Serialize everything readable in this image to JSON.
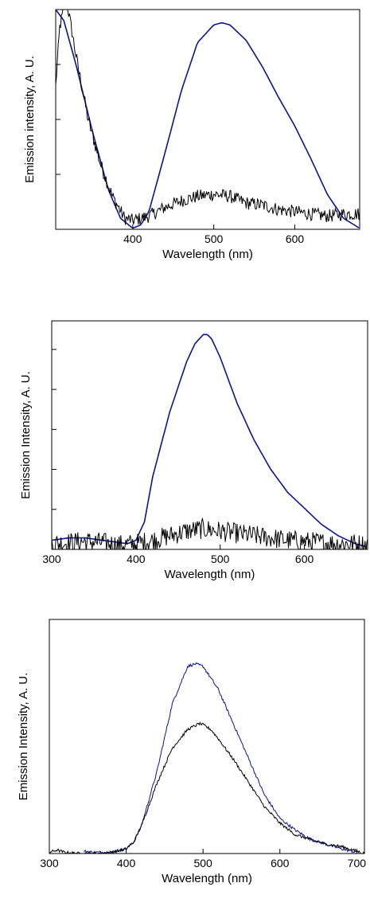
{
  "colors": {
    "blue": "#0a1496",
    "black": "#000000"
  },
  "chart_data": [
    {
      "type": "line",
      "xlabel": "Wavelength (nm)",
      "ylabel": "Emission intensity, A. U.",
      "xlim": [
        305,
        680
      ],
      "ylim": [
        0,
        1.0
      ],
      "xticks": [
        400,
        500,
        600
      ],
      "yticks": [
        0,
        0.25,
        0.5,
        0.75,
        1.0
      ],
      "grid": false,
      "series": [
        {
          "color": "blue",
          "noise": 0,
          "x": [
            305,
            315,
            330,
            350,
            370,
            385,
            400,
            410,
            420,
            440,
            460,
            480,
            500,
            510,
            520,
            540,
            560,
            580,
            600,
            620,
            640,
            660,
            680
          ],
          "y": [
            1.0,
            0.95,
            0.75,
            0.45,
            0.18,
            0.05,
            0.005,
            0.02,
            0.08,
            0.35,
            0.63,
            0.85,
            0.93,
            0.94,
            0.93,
            0.86,
            0.74,
            0.6,
            0.47,
            0.32,
            0.16,
            0.05,
            0.005
          ]
        },
        {
          "color": "black",
          "noise": 0.03,
          "x": [
            305,
            310,
            318,
            325,
            332,
            345,
            360,
            375,
            390,
            400,
            420,
            440,
            460,
            480,
            500,
            520,
            540,
            560,
            580,
            600,
            620,
            640,
            660,
            680
          ],
          "y": [
            0.65,
            0.92,
            1.05,
            0.9,
            0.75,
            0.5,
            0.3,
            0.15,
            0.05,
            0.04,
            0.06,
            0.1,
            0.13,
            0.15,
            0.16,
            0.15,
            0.12,
            0.11,
            0.09,
            0.08,
            0.07,
            0.06,
            0.07,
            0.07
          ]
        }
      ]
    },
    {
      "type": "line",
      "xlabel": "Wavelength (nm)",
      "ylabel": "Emission Intensity, A. U.",
      "xlim": [
        300,
        675
      ],
      "ylim": [
        0,
        1.0
      ],
      "xticks": [
        300,
        400,
        500,
        600
      ],
      "yticks": [
        0,
        0.175,
        0.35,
        0.525,
        0.7,
        0.875
      ],
      "grid": false,
      "series": [
        {
          "color": "blue",
          "noise": 0,
          "x": [
            300,
            320,
            340,
            360,
            380,
            390,
            400,
            410,
            420,
            440,
            460,
            470,
            480,
            485,
            490,
            500,
            520,
            540,
            560,
            580,
            600,
            620,
            640,
            660,
            675
          ],
          "y": [
            0.04,
            0.05,
            0.05,
            0.04,
            0.03,
            0.025,
            0.04,
            0.12,
            0.32,
            0.6,
            0.82,
            0.9,
            0.94,
            0.94,
            0.92,
            0.84,
            0.64,
            0.48,
            0.35,
            0.25,
            0.18,
            0.11,
            0.06,
            0.025,
            0.01
          ]
        },
        {
          "color": "black",
          "noise": 0.045,
          "x": [
            300,
            320,
            340,
            360,
            380,
            400,
            420,
            440,
            460,
            480,
            500,
            520,
            540,
            560,
            580,
            600,
            620,
            640,
            660,
            675
          ],
          "y": [
            0.025,
            0.03,
            0.035,
            0.03,
            0.02,
            0.025,
            0.04,
            0.06,
            0.08,
            0.09,
            0.08,
            0.07,
            0.06,
            0.05,
            0.04,
            0.035,
            0.03,
            0.025,
            0.025,
            0.02
          ]
        }
      ]
    },
    {
      "type": "line",
      "xlabel": "Wavelength (nm)",
      "ylabel": "Emission Intensity, A. U.",
      "xlim": [
        300,
        710
      ],
      "ylim": [
        0,
        1.0
      ],
      "xticks": [
        300,
        400,
        500,
        600,
        700
      ],
      "yticks": [
        0
      ],
      "grid": false,
      "series": [
        {
          "color": "blue",
          "noise": 0.006,
          "x": [
            345,
            360,
            380,
            400,
            410,
            420,
            440,
            460,
            480,
            490,
            500,
            510,
            520,
            540,
            560,
            580,
            600,
            620,
            640,
            660,
            680,
            700
          ],
          "y": [
            0.01,
            0.005,
            0.005,
            0.02,
            0.05,
            0.12,
            0.35,
            0.64,
            0.8,
            0.81,
            0.8,
            0.75,
            0.7,
            0.55,
            0.4,
            0.25,
            0.15,
            0.1,
            0.06,
            0.04,
            0.02,
            0.005
          ]
        },
        {
          "color": "black",
          "noise": 0.006,
          "x": [
            300,
            310,
            320,
            340,
            360,
            380,
            400,
            410,
            420,
            440,
            460,
            480,
            495,
            500,
            510,
            520,
            540,
            560,
            580,
            600,
            620,
            640,
            660,
            680,
            700,
            710
          ],
          "y": [
            0.005,
            0.015,
            0.005,
            0.0,
            0.0,
            0.005,
            0.02,
            0.05,
            0.12,
            0.3,
            0.45,
            0.53,
            0.555,
            0.55,
            0.53,
            0.49,
            0.4,
            0.3,
            0.2,
            0.13,
            0.08,
            0.06,
            0.04,
            0.03,
            0.01,
            0.0
          ]
        }
      ]
    }
  ]
}
